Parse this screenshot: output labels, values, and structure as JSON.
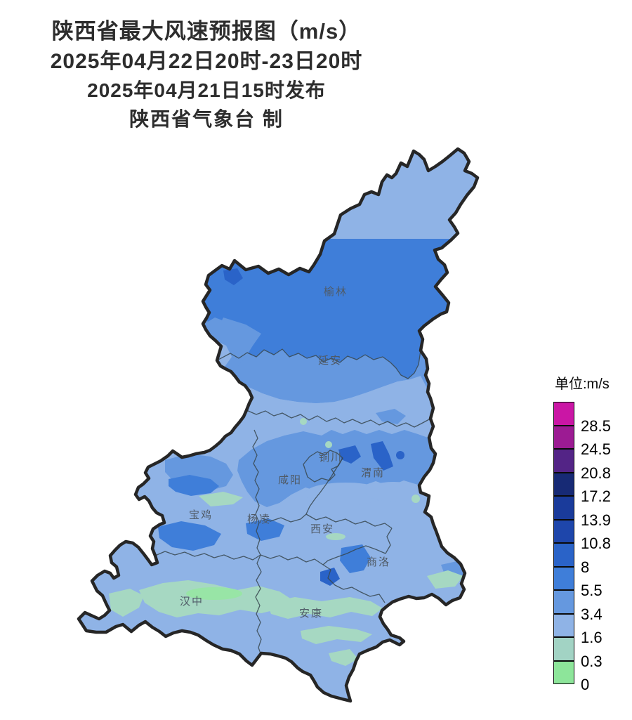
{
  "title": {
    "line1": "陕西省最大风速预报图（m/s）",
    "line2": "2025年04月22日20时-23日20时",
    "line3": "2025年04月21日15时发布",
    "line4": "陕西省气象台 制"
  },
  "legend": {
    "title": "单位:m/s",
    "entries": [
      {
        "label": "28.5",
        "color": "#CA16A5"
      },
      {
        "label": "24.5",
        "color": "#9C1B93"
      },
      {
        "label": "20.8",
        "color": "#532486"
      },
      {
        "label": "17.2",
        "color": "#172A75"
      },
      {
        "label": "13.9",
        "color": "#1A3B9B"
      },
      {
        "label": "10.8",
        "color": "#1E46AB"
      },
      {
        "label": "8",
        "color": "#2A63C8"
      },
      {
        "label": "5.5",
        "color": "#3F7ED9"
      },
      {
        "label": "3.4",
        "color": "#6598DF"
      },
      {
        "label": "1.6",
        "color": "#8FB3E6"
      },
      {
        "label": "0.3",
        "color": "#A2D3C4"
      },
      {
        "label": "0",
        "color": "#8DE59A"
      }
    ]
  },
  "map": {
    "region": "陕西省",
    "cities": [
      "榆林",
      "延安",
      "铜川",
      "渭南",
      "咸阳",
      "宝鸡",
      "杨凌",
      "西安",
      "商洛",
      "汉中",
      "安康"
    ],
    "wind_bands_ms": [
      0,
      0.3,
      1.6,
      3.4,
      5.5,
      8,
      10.8,
      13.9,
      17.2,
      20.8,
      24.5,
      28.5
    ],
    "dominant_values": {
      "榆林": "5.5-8",
      "延安": "3.4-5.5",
      "关中": "1.6-5.5",
      "陕南": "0.3-3.4"
    }
  }
}
